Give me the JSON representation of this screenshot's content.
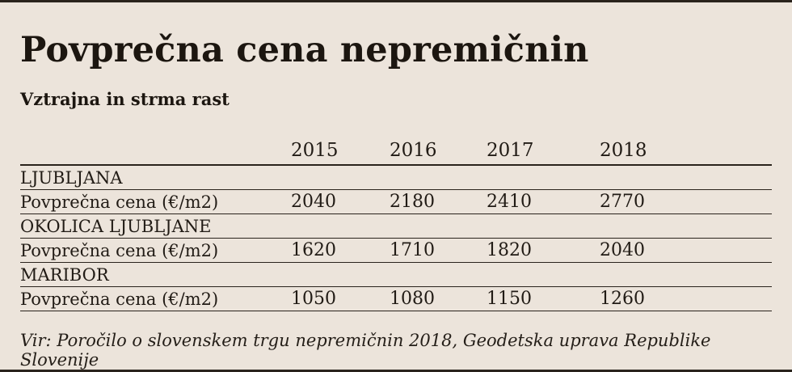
{
  "header": {
    "title": "Povprečna cena nepremičnin",
    "subtitle": "Vztrajna in strma rast"
  },
  "footer": {
    "source": "Vir: Poročilo o slovenskem trgu nepremičnin 2018, Geodetska uprava Republike Slovenije"
  },
  "chart_data": {
    "type": "table",
    "title": "Povprečna cena nepremičnin",
    "subtitle": "Vztrajna in strma rast",
    "unit": "€/m2",
    "years": [
      "2015",
      "2016",
      "2017",
      "2018"
    ],
    "sections": [
      {
        "region": "LJUBLJANA",
        "metric": "Povprečna cena (€/m2)",
        "values": [
          "2040",
          "2180",
          "2410",
          "2770"
        ]
      },
      {
        "region": "OKOLICA LJUBLJANE",
        "metric": "Povprečna cena (€/m2)",
        "values": [
          "1620",
          "1710",
          "1820",
          "2040"
        ]
      },
      {
        "region": "MARIBOR",
        "metric": "Povprečna cena (€/m2)",
        "values": [
          "1050",
          "1080",
          "1150",
          "1260"
        ]
      }
    ],
    "source": "Vir: Poročilo o slovenskem trgu nepremičnin 2018, Geodetska uprava Republike Slovenije"
  },
  "colors": {
    "background": "#ece4db",
    "text": "#211b15",
    "rule": "#2a231c"
  }
}
